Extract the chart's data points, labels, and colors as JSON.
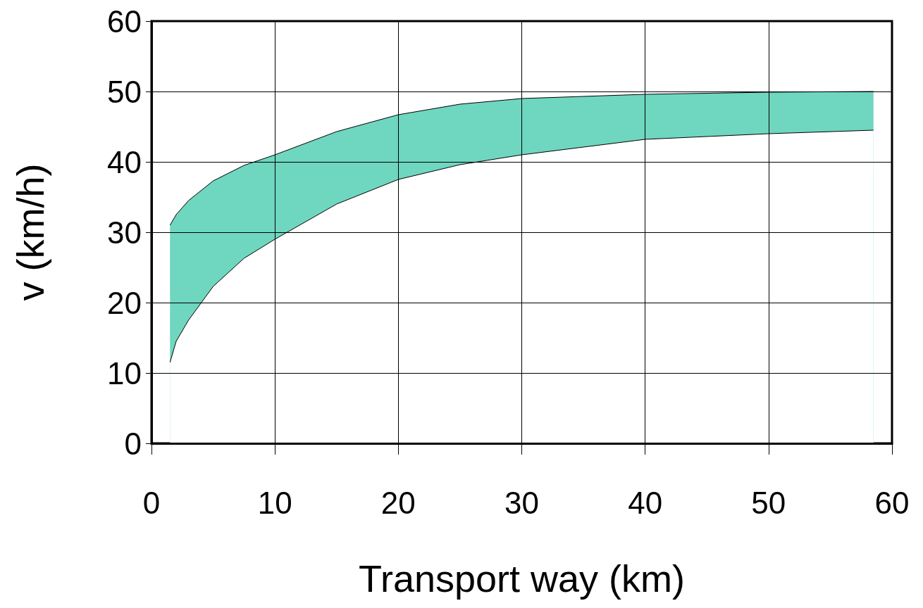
{
  "chart_data": {
    "type": "area",
    "xlabel": "Transport way (km)",
    "ylabel": "v (km/h)",
    "xlim": [
      0,
      60
    ],
    "ylim": [
      0,
      60
    ],
    "xticks": [
      0,
      10,
      20,
      30,
      40,
      50,
      60
    ],
    "yticks": [
      0,
      10,
      20,
      30,
      40,
      50,
      60
    ],
    "grid": true,
    "series": [
      {
        "color": "#6fd6bf",
        "x": [
          1.5,
          2,
          3,
          5,
          7.5,
          10,
          15,
          20,
          25,
          30,
          40,
          50,
          58.5
        ],
        "values": [
          31,
          32.5,
          34.5,
          37.3,
          39.5,
          41,
          44.3,
          46.7,
          48.2,
          49,
          49.6,
          49.9,
          50
        ]
      },
      {
        "color": "#ffffff",
        "x": [
          1.5,
          2,
          3,
          5,
          7.5,
          10,
          15,
          20,
          25,
          30,
          40,
          50,
          58.5
        ],
        "values": [
          11.5,
          14.5,
          17.5,
          22.3,
          26.3,
          29,
          34,
          37.5,
          39.6,
          41,
          43.2,
          44,
          44.5
        ]
      }
    ]
  }
}
